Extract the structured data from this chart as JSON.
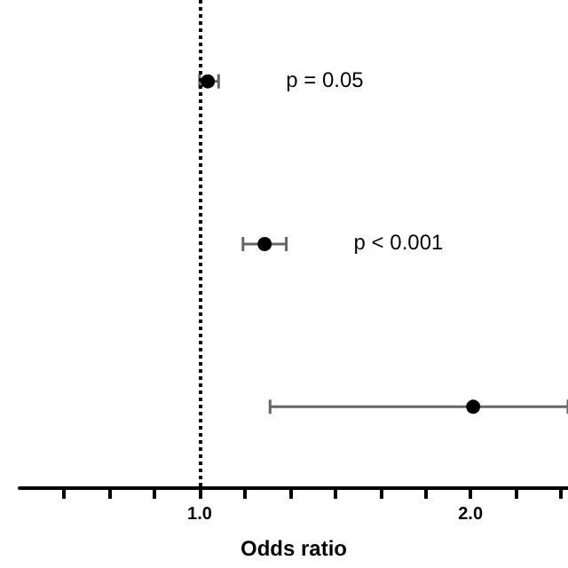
{
  "chart_data": {
    "type": "scatter",
    "orientation": "horizontal",
    "xlabel": "Odds ratio",
    "categories": [
      null,
      null,
      null
    ],
    "values": [
      1.03,
      1.24,
      2.01
    ],
    "errors": [
      [
        1.0,
        1.07
      ],
      [
        1.16,
        1.32
      ],
      [
        1.26,
        2.36
      ]
    ],
    "color": "#000000",
    "marker": "circle",
    "xlim": [
      0.335,
      2.36
    ],
    "xticks": [
      {
        "value": 0.5,
        "label": null
      },
      {
        "value": 0.667,
        "label": null
      },
      {
        "value": 0.833,
        "label": null
      },
      {
        "value": 1,
        "label": "1.0"
      },
      {
        "value": 1.167,
        "label": null
      },
      {
        "value": 1.333,
        "label": null
      },
      {
        "value": 1.5,
        "label": null
      },
      {
        "value": 1.667,
        "label": null
      },
      {
        "value": 1.833,
        "label": null
      },
      {
        "value": 2,
        "label": "2.0"
      },
      {
        "value": 2.167,
        "label": null
      },
      {
        "value": 2.333,
        "label": null
      }
    ],
    "ref_lines": [
      {
        "axis": "x",
        "value": 1,
        "line_style": "dotted",
        "color": "#000000"
      }
    ],
    "annotations": [
      "p = 0.05",
      "p < 0.001"
    ]
  }
}
